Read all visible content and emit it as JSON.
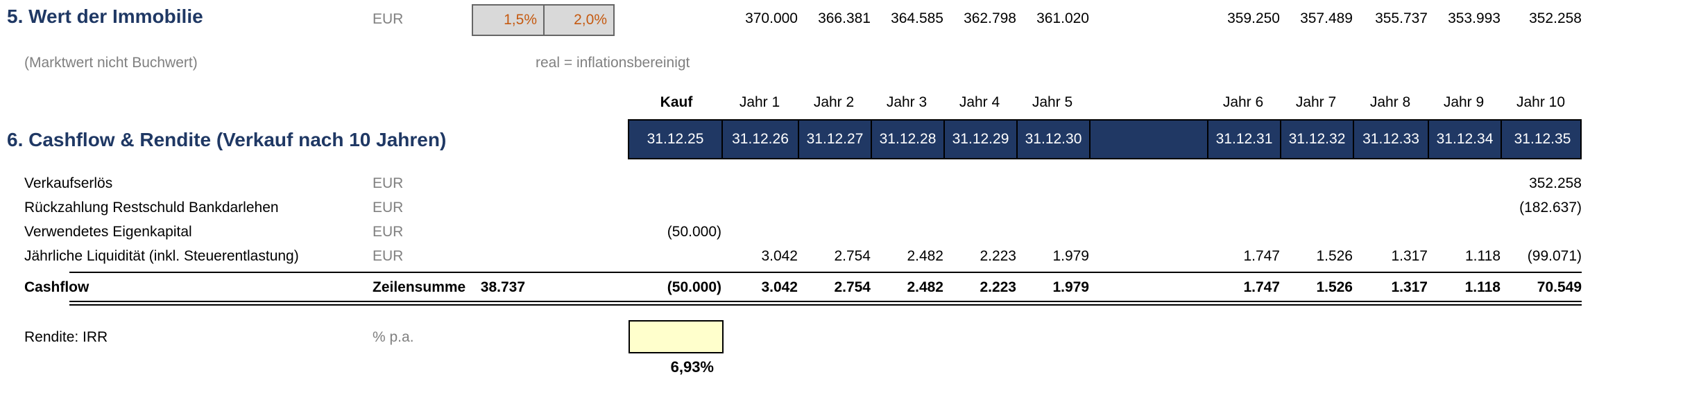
{
  "colors": {
    "title_navy": "#1F3864",
    "band_navy": "#203864",
    "muted_gray": "#808080",
    "scenario_orange": "#C55A11",
    "scenario_bg": "#D9D9D9",
    "irr_bg": "#FFFFCC"
  },
  "section5": {
    "title": "5. Wert der Immobilie",
    "subtitle": "(Marktwert nicht Buchwert)",
    "unit": "EUR",
    "scenario_cells": [
      "1,5%",
      "2,0%"
    ],
    "scenario_note": "real = inflationsbereinigt",
    "values": [
      "",
      "370.000",
      "366.381",
      "364.585",
      "362.798",
      "361.020",
      "359.250",
      "357.489",
      "355.737",
      "353.993",
      "352.258"
    ]
  },
  "table": {
    "col_headers": [
      "Kauf",
      "Jahr 1",
      "Jahr 2",
      "Jahr 3",
      "Jahr 4",
      "Jahr 5",
      "Jahr 6",
      "Jahr 7",
      "Jahr 8",
      "Jahr 9",
      "Jahr 10"
    ],
    "date_row": [
      "31.12.25",
      "31.12.26",
      "31.12.27",
      "31.12.28",
      "31.12.29",
      "31.12.30",
      "31.12.31",
      "31.12.32",
      "31.12.33",
      "31.12.34",
      "31.12.35"
    ]
  },
  "section6": {
    "title": "6. Cashflow & Rendite (Verkauf nach 10 Jahren)",
    "rows": [
      {
        "label": "Verkaufserlös",
        "unit": "EUR",
        "values": [
          "",
          "",
          "",
          "",
          "",
          "",
          "",
          "",
          "",
          "",
          "352.258"
        ]
      },
      {
        "label": "Rückzahlung Restschuld Bankdarlehen",
        "unit": "EUR",
        "values": [
          "",
          "",
          "",
          "",
          "",
          "",
          "",
          "",
          "",
          "",
          "(182.637)"
        ]
      },
      {
        "label": "Verwendetes Eigenkapital",
        "unit": "EUR",
        "values": [
          "(50.000)",
          "",
          "",
          "",
          "",
          "",
          "",
          "",
          "",
          "",
          ""
        ]
      },
      {
        "label": "Jährliche Liquidität (inkl. Steuerentlastung)",
        "unit": "EUR",
        "values": [
          "",
          "3.042",
          "2.754",
          "2.482",
          "2.223",
          "1.979",
          "1.747",
          "1.526",
          "1.317",
          "1.118",
          "(99.071)"
        ]
      }
    ],
    "cashflow_row": {
      "label": "Cashflow",
      "sum_label": "Zeilensumme",
      "sum_value": "38.737",
      "values": [
        "(50.000)",
        "3.042",
        "2.754",
        "2.482",
        "2.223",
        "1.979",
        "1.747",
        "1.526",
        "1.317",
        "1.118",
        "70.549"
      ]
    },
    "irr_row": {
      "label": "Rendite: IRR",
      "unit": "% p.a.",
      "value": "6,93%"
    }
  }
}
